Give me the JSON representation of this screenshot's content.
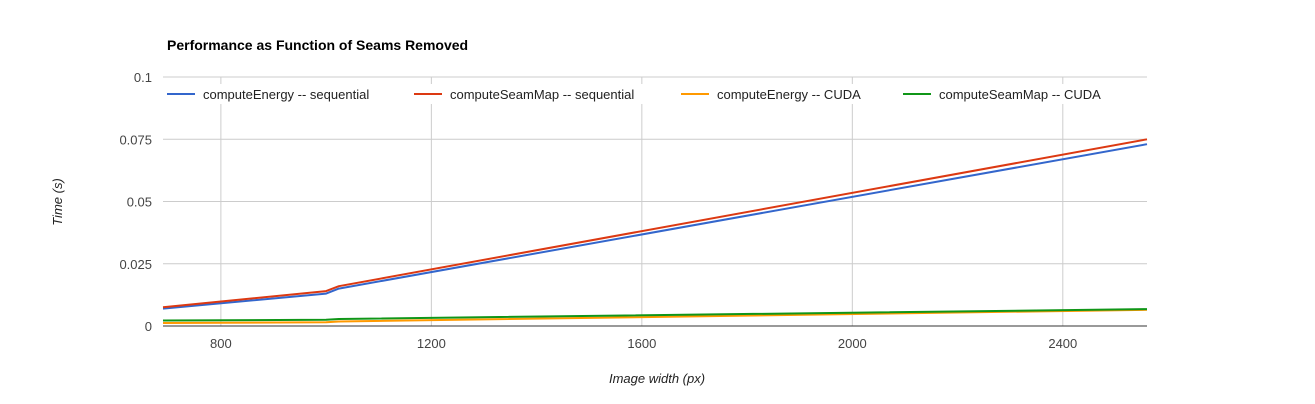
{
  "chart_data": {
    "type": "line",
    "title": "Performance as Function of Seams Removed",
    "xlabel": "Image width (px)",
    "ylabel": "Time (s)",
    "xlim": [
      690,
      2560
    ],
    "ylim": [
      0,
      0.1
    ],
    "x_ticks": [
      800,
      1200,
      1600,
      2000,
      2400
    ],
    "x_tick_labels": [
      "800",
      "1200",
      "1600",
      "2000",
      "2400"
    ],
    "y_ticks": [
      0,
      0.025,
      0.05,
      0.075,
      0.1
    ],
    "y_tick_labels": [
      "0",
      "0.025",
      "0.05",
      "0.075",
      "0.1"
    ],
    "grid": true,
    "legend_position": "top",
    "series": [
      {
        "name": "computeEnergy -- sequential",
        "color": "#3366cc",
        "x": [
          690,
          1000,
          1024,
          2560
        ],
        "y": [
          0.007,
          0.013,
          0.015,
          0.073
        ]
      },
      {
        "name": "computeSeamMap -- sequential",
        "color": "#dc3912",
        "x": [
          690,
          1000,
          1024,
          2560
        ],
        "y": [
          0.0075,
          0.014,
          0.016,
          0.075
        ]
      },
      {
        "name": "computeEnergy -- CUDA",
        "color": "#ff9900",
        "x": [
          690,
          1000,
          1024,
          2560
        ],
        "y": [
          0.0012,
          0.0015,
          0.0018,
          0.0065
        ]
      },
      {
        "name": "computeSeamMap -- CUDA",
        "color": "#109618",
        "x": [
          690,
          1000,
          1024,
          2560
        ],
        "y": [
          0.0022,
          0.0025,
          0.0028,
          0.0068
        ]
      }
    ]
  }
}
